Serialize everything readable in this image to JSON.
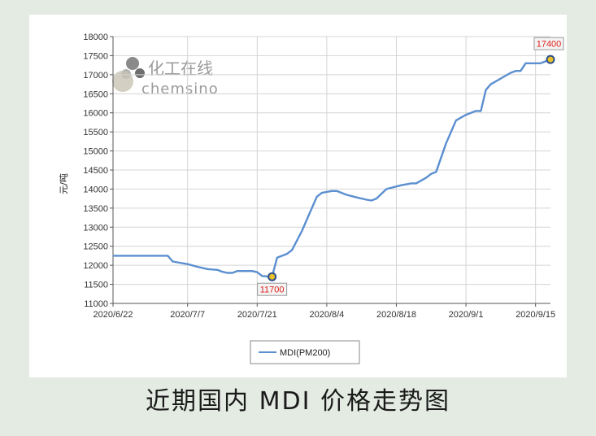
{
  "caption": "近期国内 MDI 价格走势图",
  "watermark": {
    "cn": "化工在线",
    "en": "chemsino"
  },
  "chart_data": {
    "type": "line",
    "ylabel": "元/吨",
    "ylim": [
      11000,
      18000
    ],
    "ytick_step": 500,
    "x_start": "2020-06-22",
    "x_end": "2020-09-18",
    "xticks": [
      {
        "date": "2020-06-22",
        "label": "2020/6/22"
      },
      {
        "date": "2020-07-07",
        "label": "2020/7/7"
      },
      {
        "date": "2020-07-21",
        "label": "2020/7/21"
      },
      {
        "date": "2020-08-04",
        "label": "2020/8/4"
      },
      {
        "date": "2020-08-18",
        "label": "2020/8/18"
      },
      {
        "date": "2020-09-01",
        "label": "2020/9/1"
      },
      {
        "date": "2020-09-15",
        "label": "2020/9/15"
      }
    ],
    "grid": true,
    "legend_position": "bottom-center",
    "series": [
      {
        "name": "MDI(PM200)",
        "color": "#5b8fd0",
        "points": [
          [
            "2020-06-22",
            12250
          ],
          [
            "2020-06-26",
            12250
          ],
          [
            "2020-07-03",
            12250
          ],
          [
            "2020-07-04",
            12100
          ],
          [
            "2020-07-07",
            12030
          ],
          [
            "2020-07-09",
            11960
          ],
          [
            "2020-07-11",
            11900
          ],
          [
            "2020-07-13",
            11880
          ],
          [
            "2020-07-14",
            11830
          ],
          [
            "2020-07-15",
            11800
          ],
          [
            "2020-07-16",
            11800
          ],
          [
            "2020-07-17",
            11850
          ],
          [
            "2020-07-20",
            11850
          ],
          [
            "2020-07-21",
            11820
          ],
          [
            "2020-07-22",
            11720
          ],
          [
            "2020-07-24",
            11700
          ],
          [
            "2020-07-25",
            12200
          ],
          [
            "2020-07-27",
            12300
          ],
          [
            "2020-07-28",
            12400
          ],
          [
            "2020-07-30",
            12900
          ],
          [
            "2020-07-31",
            13200
          ],
          [
            "2020-08-02",
            13800
          ],
          [
            "2020-08-03",
            13900
          ],
          [
            "2020-08-05",
            13950
          ],
          [
            "2020-08-06",
            13950
          ],
          [
            "2020-08-08",
            13850
          ],
          [
            "2020-08-10",
            13780
          ],
          [
            "2020-08-12",
            13720
          ],
          [
            "2020-08-13",
            13700
          ],
          [
            "2020-08-14",
            13750
          ],
          [
            "2020-08-16",
            14000
          ],
          [
            "2020-08-19",
            14100
          ],
          [
            "2020-08-21",
            14150
          ],
          [
            "2020-08-22",
            14150
          ],
          [
            "2020-08-24",
            14300
          ],
          [
            "2020-08-25",
            14400
          ],
          [
            "2020-08-26",
            14450
          ],
          [
            "2020-08-28",
            15200
          ],
          [
            "2020-08-30",
            15800
          ],
          [
            "2020-09-01",
            15950
          ],
          [
            "2020-09-02",
            16000
          ],
          [
            "2020-09-03",
            16050
          ],
          [
            "2020-09-04",
            16050
          ],
          [
            "2020-09-05",
            16600
          ],
          [
            "2020-09-06",
            16750
          ],
          [
            "2020-09-08",
            16900
          ],
          [
            "2020-09-10",
            17050
          ],
          [
            "2020-09-11",
            17100
          ],
          [
            "2020-09-12",
            17100
          ],
          [
            "2020-09-13",
            17300
          ],
          [
            "2020-09-15",
            17300
          ],
          [
            "2020-09-16",
            17300
          ],
          [
            "2020-09-18",
            17400
          ]
        ]
      }
    ],
    "annotations": [
      {
        "date": "2020-07-24",
        "value": 11700,
        "label": "11700",
        "placement": "below"
      },
      {
        "date": "2020-09-18",
        "value": 17400,
        "label": "17400",
        "placement": "above"
      }
    ],
    "colors": {
      "grid": "#d4d4d4",
      "axis": "#555555",
      "marker_fill": "#e8c12a",
      "marker_stroke": "#2d4f8a",
      "annotation_text": "#e0201a"
    }
  }
}
